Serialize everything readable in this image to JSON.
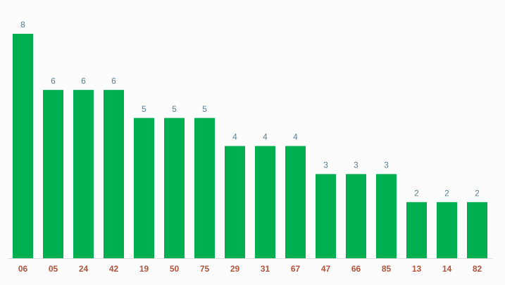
{
  "chart_data": {
    "type": "bar",
    "categories": [
      "06",
      "05",
      "24",
      "42",
      "19",
      "50",
      "75",
      "29",
      "31",
      "67",
      "47",
      "66",
      "85",
      "13",
      "14",
      "82"
    ],
    "values": [
      8,
      6,
      6,
      6,
      5,
      5,
      5,
      4,
      4,
      4,
      3,
      3,
      3,
      2,
      2,
      2
    ],
    "color": "#00b050"
  }
}
